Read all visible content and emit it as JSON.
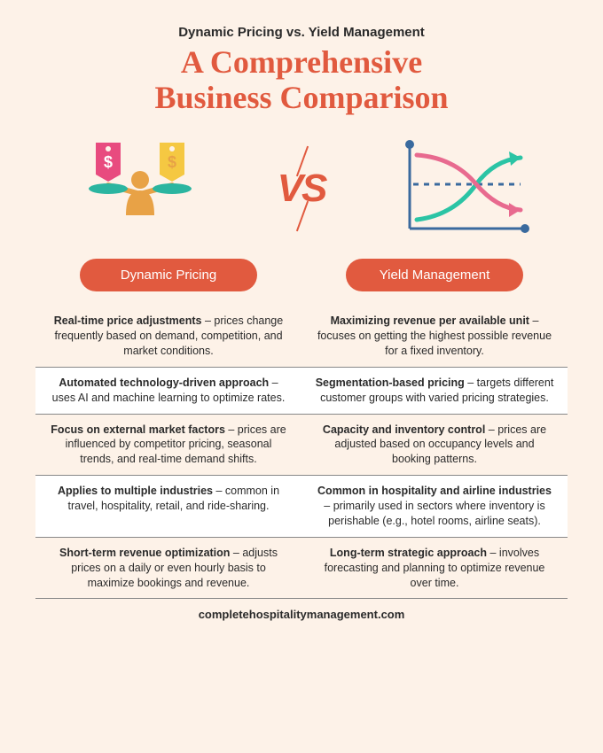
{
  "subtitle": "Dynamic Pricing vs. Yield Management",
  "title_line1": "A Comprehensive",
  "title_line2": "Business Comparison",
  "vs_label": "VS",
  "colors": {
    "background": "#fdf2e8",
    "accent": "#e15a3f",
    "title": "#e15a3f",
    "text": "#2a2a2a",
    "row_alt": "#ffffff",
    "border": "#888888",
    "pill_bg": "#e15a3f",
    "pill_text": "#ffffff",
    "icon_pink": "#e84b7f",
    "icon_yellow": "#f5c842",
    "icon_teal": "#2bb5a0",
    "icon_orange": "#e8a246",
    "chart_axis": "#3a6a9e",
    "chart_line_green": "#2bc4a5",
    "chart_line_pink": "#e86a8f"
  },
  "typography": {
    "title_fontsize": 36,
    "subtitle_fontsize": 15,
    "pill_fontsize": 15,
    "cell_fontsize": 12.5,
    "footer_fontsize": 13,
    "vs_fontsize": 44
  },
  "left": {
    "pill": "Dynamic Pricing",
    "icon_type": "balance-scale-tags"
  },
  "right": {
    "pill": "Yield Management",
    "icon_type": "crossing-curves-chart"
  },
  "rows": [
    {
      "left_bold": "Real-time price adjustments",
      "left_rest": " – prices change frequently based on demand, competition, and market conditions.",
      "right_bold": "Maximizing revenue per available unit",
      "right_rest": " – focuses on getting the highest possible revenue for a fixed inventory."
    },
    {
      "left_bold": "Automated technology-driven approach",
      "left_rest": " – uses AI and machine learning to optimize rates.",
      "right_bold": "Segmentation-based pricing",
      "right_rest": " – targets different customer groups with varied pricing strategies."
    },
    {
      "left_bold": "Focus on external market factors",
      "left_rest": " – prices are influenced by competitor pricing, seasonal trends, and real-time demand shifts.",
      "right_bold": "Capacity and inventory control",
      "right_rest": " – prices are adjusted based on occupancy levels and booking patterns."
    },
    {
      "left_bold": "Applies to multiple industries",
      "left_rest": " – common in travel, hospitality, retail, and ride-sharing.",
      "right_bold": "Common in hospitality and airline industries",
      "right_rest": " – primarily used in sectors where inventory is perishable (e.g., hotel rooms, airline seats)."
    },
    {
      "left_bold": "Short-term revenue optimization",
      "left_rest": " – adjusts prices on a daily or even hourly basis to maximize bookings and revenue.",
      "right_bold": "Long-term strategic approach",
      "right_rest": " – involves forecasting and planning to optimize revenue over time."
    }
  ],
  "footer": "completehospitalitymanagement.com"
}
